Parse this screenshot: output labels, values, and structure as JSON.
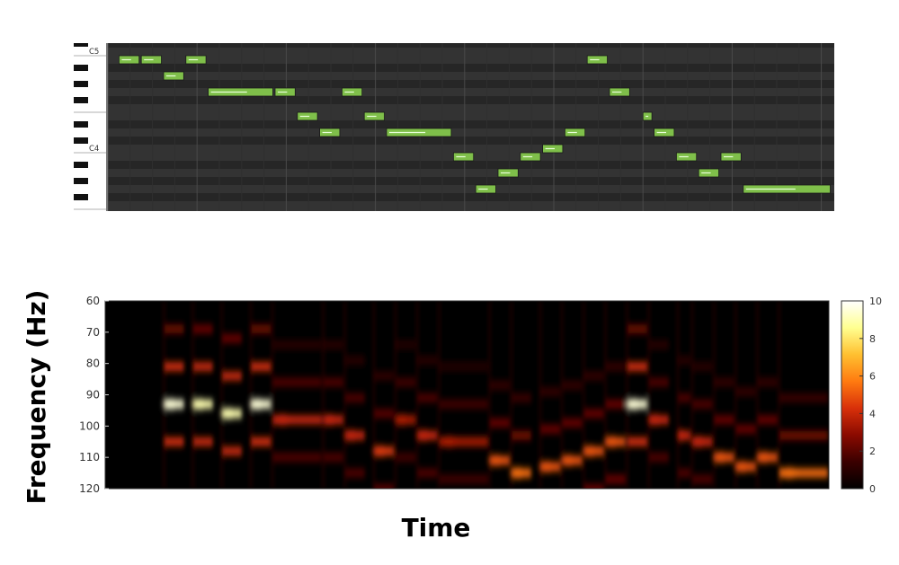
{
  "piano_roll": {
    "key_labels": [
      {
        "label": "C5",
        "pitch": 72
      },
      {
        "label": "C4",
        "pitch": 60
      }
    ],
    "colors": {
      "background": "#2a2a2a",
      "row_light": "#333333",
      "row_dark": "#262626",
      "note_fill": "#7fbf4a",
      "note_border": "#1a1a1a",
      "note_line": "#e8ffd8"
    },
    "pitch_range": [
      55,
      72
    ],
    "time_range": [
      0,
      32.5
    ],
    "notes": [
      {
        "start": 0.5,
        "dur": 0.9,
        "pitch": 71
      },
      {
        "start": 1.5,
        "dur": 0.9,
        "pitch": 71
      },
      {
        "start": 2.5,
        "dur": 0.9,
        "pitch": 69
      },
      {
        "start": 3.5,
        "dur": 0.9,
        "pitch": 71
      },
      {
        "start": 4.5,
        "dur": 2.9,
        "pitch": 67
      },
      {
        "start": 7.5,
        "dur": 0.9,
        "pitch": 67
      },
      {
        "start": 8.5,
        "dur": 0.9,
        "pitch": 64
      },
      {
        "start": 9.5,
        "dur": 0.9,
        "pitch": 62
      },
      {
        "start": 10.5,
        "dur": 0.9,
        "pitch": 67
      },
      {
        "start": 11.5,
        "dur": 0.9,
        "pitch": 64
      },
      {
        "start": 12.5,
        "dur": 2.9,
        "pitch": 62
      },
      {
        "start": 15.5,
        "dur": 0.9,
        "pitch": 59
      },
      {
        "start": 16.5,
        "dur": 0.9,
        "pitch": 55
      },
      {
        "start": 17.5,
        "dur": 0.9,
        "pitch": 57
      },
      {
        "start": 18.5,
        "dur": 0.9,
        "pitch": 59
      },
      {
        "start": 19.5,
        "dur": 0.9,
        "pitch": 60
      },
      {
        "start": 20.5,
        "dur": 0.9,
        "pitch": 62
      },
      {
        "start": 21.5,
        "dur": 0.9,
        "pitch": 71
      },
      {
        "start": 22.5,
        "dur": 0.9,
        "pitch": 67
      },
      {
        "start": 24.0,
        "dur": 0.4,
        "pitch": 64
      },
      {
        "start": 24.5,
        "dur": 0.9,
        "pitch": 62
      },
      {
        "start": 25.5,
        "dur": 0.9,
        "pitch": 59
      },
      {
        "start": 26.5,
        "dur": 0.9,
        "pitch": 57
      },
      {
        "start": 27.5,
        "dur": 0.9,
        "pitch": 59
      },
      {
        "start": 28.5,
        "dur": 3.9,
        "pitch": 55
      }
    ]
  },
  "chart_data": {
    "type": "heatmap",
    "xlabel": "Time",
    "ylabel": "Frequency (Hz)",
    "yticks": [
      "60",
      "70",
      "80",
      "90",
      "100",
      "110",
      "120"
    ],
    "ylim": [
      60,
      120
    ],
    "colorbar": {
      "ticks": [
        "0",
        "2",
        "4",
        "6",
        "8",
        "10"
      ],
      "range": [
        0,
        10
      ]
    },
    "colormap": [
      "#000000",
      "#3a0000",
      "#8a0a00",
      "#d8300a",
      "#ff7a10",
      "#ffc030",
      "#ffff90",
      "#ffffff"
    ],
    "events": [
      {
        "t": 0.08,
        "dur": 0.03,
        "freq": 93,
        "amp": 9.5
      },
      {
        "t": 0.12,
        "dur": 0.03,
        "freq": 93,
        "amp": 9
      },
      {
        "t": 0.16,
        "dur": 0.03,
        "freq": 96,
        "amp": 9
      },
      {
        "t": 0.2,
        "dur": 0.03,
        "freq": 93,
        "amp": 9.5
      },
      {
        "t": 0.23,
        "dur": 0.07,
        "freq": 98,
        "amp": 4
      },
      {
        "t": 0.3,
        "dur": 0.03,
        "freq": 98,
        "amp": 4
      },
      {
        "t": 0.33,
        "dur": 0.03,
        "freq": 103,
        "amp": 4
      },
      {
        "t": 0.37,
        "dur": 0.03,
        "freq": 108,
        "amp": 4.5
      },
      {
        "t": 0.4,
        "dur": 0.03,
        "freq": 98,
        "amp": 3.5
      },
      {
        "t": 0.43,
        "dur": 0.03,
        "freq": 103,
        "amp": 4
      },
      {
        "t": 0.46,
        "dur": 0.07,
        "freq": 105,
        "amp": 3.5
      },
      {
        "t": 0.53,
        "dur": 0.03,
        "freq": 111,
        "amp": 5
      },
      {
        "t": 0.56,
        "dur": 0.03,
        "freq": 115,
        "amp": 5.5
      },
      {
        "t": 0.6,
        "dur": 0.03,
        "freq": 113,
        "amp": 5
      },
      {
        "t": 0.63,
        "dur": 0.03,
        "freq": 111,
        "amp": 5
      },
      {
        "t": 0.66,
        "dur": 0.03,
        "freq": 108,
        "amp": 5
      },
      {
        "t": 0.69,
        "dur": 0.03,
        "freq": 105,
        "amp": 5
      },
      {
        "t": 0.72,
        "dur": 0.03,
        "freq": 93,
        "amp": 9.5
      },
      {
        "t": 0.75,
        "dur": 0.03,
        "freq": 98,
        "amp": 4
      },
      {
        "t": 0.79,
        "dur": 0.02,
        "freq": 103,
        "amp": 4
      },
      {
        "t": 0.81,
        "dur": 0.03,
        "freq": 105,
        "amp": 4
      },
      {
        "t": 0.84,
        "dur": 0.03,
        "freq": 110,
        "amp": 5
      },
      {
        "t": 0.87,
        "dur": 0.03,
        "freq": 113,
        "amp": 5
      },
      {
        "t": 0.9,
        "dur": 0.03,
        "freq": 110,
        "amp": 5
      },
      {
        "t": 0.93,
        "dur": 0.07,
        "freq": 115,
        "amp": 5.5
      }
    ]
  }
}
